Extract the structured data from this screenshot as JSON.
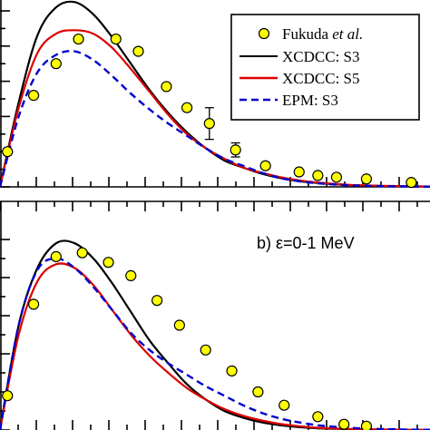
{
  "chart_data": [
    {
      "type": "line",
      "panel": "top",
      "xlim": [
        0,
        11.5
      ],
      "ylim": [
        0,
        1
      ],
      "title": "",
      "xlabel": "",
      "ylabel": "",
      "legend": {
        "placement": "top-right",
        "entries": [
          {
            "label_prefix": "Fukuda ",
            "label_italic": "et al.",
            "marker": "circle",
            "color": "#ffff00"
          },
          {
            "label": "XCDCC: S3",
            "color": "#000000",
            "dash": "solid"
          },
          {
            "label": "XCDCC: S5",
            "color": "#dd0000",
            "dash": "solid"
          },
          {
            "label": "EPM: S3",
            "color": "#0000cc",
            "dash": "dashed"
          }
        ]
      },
      "series": [
        {
          "name": "XCDCC: S3",
          "color": "#000000",
          "dash": "solid",
          "x": [
            0.0,
            0.5,
            1.0,
            1.5,
            2.0,
            2.5,
            3.0,
            3.5,
            4.0,
            4.5,
            5.0,
            5.5,
            6.0,
            6.5,
            7.0,
            7.5,
            8.0,
            8.5,
            9.0,
            9.5,
            10.0,
            10.5,
            11.0,
            11.5
          ],
          "y": [
            0.0,
            0.48,
            0.86,
            1.02,
            1.05,
            0.98,
            0.85,
            0.7,
            0.55,
            0.42,
            0.31,
            0.22,
            0.15,
            0.11,
            0.075,
            0.05,
            0.033,
            0.022,
            0.014,
            0.009,
            0.006,
            0.004,
            0.003,
            0.002
          ]
        },
        {
          "name": "XCDCC: S5",
          "color": "#dd0000",
          "dash": "solid",
          "x": [
            0.0,
            0.5,
            1.0,
            1.5,
            2.0,
            2.5,
            3.0,
            3.5,
            4.0,
            4.5,
            5.0,
            5.5,
            6.0,
            6.5,
            7.0,
            7.5,
            8.0,
            8.5,
            9.0,
            9.5,
            10.0,
            10.5,
            11.0,
            11.5
          ],
          "y": [
            0.0,
            0.45,
            0.76,
            0.87,
            0.89,
            0.87,
            0.79,
            0.67,
            0.54,
            0.41,
            0.3,
            0.22,
            0.16,
            0.11,
            0.08,
            0.055,
            0.037,
            0.025,
            0.016,
            0.01,
            0.007,
            0.005,
            0.003,
            0.002
          ]
        },
        {
          "name": "EPM: S3",
          "color": "#0000cc",
          "dash": "dashed",
          "x": [
            0.0,
            0.5,
            1.0,
            1.5,
            2.0,
            2.5,
            3.0,
            3.5,
            4.0,
            4.5,
            5.0,
            5.5,
            6.0,
            6.5,
            7.0,
            7.5,
            8.0,
            8.5,
            9.0,
            9.5,
            10.0,
            10.5,
            11.0,
            11.5
          ],
          "y": [
            0.0,
            0.4,
            0.65,
            0.75,
            0.77,
            0.72,
            0.63,
            0.53,
            0.44,
            0.36,
            0.29,
            0.22,
            0.16,
            0.12,
            0.08,
            0.05,
            0.032,
            0.02,
            0.013,
            0.008,
            0.005,
            0.003,
            0.002,
            0.001
          ]
        },
        {
          "name": "Fukuda et al.",
          "marker": "circle",
          "color": "#ffff00",
          "x": [
            0.2,
            0.9,
            1.5,
            2.1,
            3.1,
            3.7,
            4.45,
            5.0,
            5.6,
            6.3,
            7.1,
            8.0,
            8.5,
            9.0,
            9.8,
            11.0
          ],
          "y": [
            0.2,
            0.52,
            0.7,
            0.84,
            0.84,
            0.77,
            0.57,
            0.45,
            0.36,
            0.21,
            0.12,
            0.085,
            0.065,
            0.055,
            0.045,
            0.025
          ],
          "yerr": [
            0,
            0,
            0,
            0,
            0,
            0,
            0,
            0,
            0.09,
            0.04,
            0,
            0,
            0,
            0,
            0,
            0
          ]
        }
      ]
    },
    {
      "type": "line",
      "panel": "bottom",
      "xlim": [
        0,
        11.5
      ],
      "ylim": [
        0,
        1
      ],
      "title": "",
      "xlabel": "",
      "ylabel": "",
      "annotation": "b) ε=0-1 MeV",
      "series": [
        {
          "name": "XCDCC: S3",
          "color": "#000000",
          "dash": "solid",
          "x": [
            0.0,
            0.5,
            1.0,
            1.5,
            2.0,
            2.5,
            3.0,
            3.5,
            4.0,
            4.5,
            5.0,
            5.5,
            6.0,
            6.5,
            7.0,
            7.5,
            8.0,
            8.5,
            9.0,
            9.5,
            10.0,
            10.5,
            11.0,
            11.5
          ],
          "y": [
            0.0,
            0.55,
            0.85,
            0.98,
            0.98,
            0.9,
            0.77,
            0.62,
            0.47,
            0.35,
            0.24,
            0.16,
            0.1,
            0.065,
            0.04,
            0.025,
            0.015,
            0.009,
            0.006,
            0.004,
            0.003,
            0.002,
            0.001,
            0.001
          ]
        },
        {
          "name": "XCDCC: S5",
          "color": "#dd0000",
          "dash": "solid",
          "x": [
            0.0,
            0.5,
            1.0,
            1.5,
            2.0,
            2.5,
            3.0,
            3.5,
            4.0,
            4.5,
            5.0,
            5.5,
            6.0,
            6.5,
            7.0,
            7.5,
            8.0,
            8.5,
            9.0,
            9.5,
            10.0,
            10.5,
            11.0,
            11.5
          ],
          "y": [
            0.0,
            0.5,
            0.78,
            0.87,
            0.85,
            0.76,
            0.63,
            0.5,
            0.39,
            0.3,
            0.22,
            0.16,
            0.11,
            0.075,
            0.05,
            0.032,
            0.02,
            0.012,
            0.008,
            0.005,
            0.003,
            0.002,
            0.001,
            0.001
          ]
        },
        {
          "name": "EPM: S3",
          "color": "#0000cc",
          "dash": "dashed",
          "x": [
            0.0,
            0.5,
            1.0,
            1.5,
            2.0,
            2.5,
            3.0,
            3.5,
            4.0,
            4.5,
            5.0,
            5.5,
            6.0,
            6.5,
            7.0,
            7.5,
            8.0,
            8.5,
            9.0,
            9.5,
            10.0,
            10.5,
            11.0,
            11.5
          ],
          "y": [
            0.0,
            0.55,
            0.84,
            0.9,
            0.85,
            0.75,
            0.63,
            0.51,
            0.42,
            0.35,
            0.29,
            0.23,
            0.18,
            0.13,
            0.09,
            0.06,
            0.04,
            0.025,
            0.016,
            0.01,
            0.006,
            0.004,
            0.002,
            0.001
          ]
        },
        {
          "name": "Fukuda et al.",
          "marker": "circle",
          "color": "#ffff00",
          "x": [
            0.2,
            0.9,
            1.5,
            2.2,
            2.9,
            3.5,
            4.2,
            4.8,
            5.5,
            6.2,
            6.9,
            7.6,
            8.5,
            9.2,
            9.8
          ],
          "y": [
            0.18,
            0.66,
            0.91,
            0.93,
            0.88,
            0.81,
            0.68,
            0.55,
            0.42,
            0.31,
            0.2,
            0.13,
            0.07,
            0.03,
            0.02
          ]
        }
      ]
    }
  ]
}
